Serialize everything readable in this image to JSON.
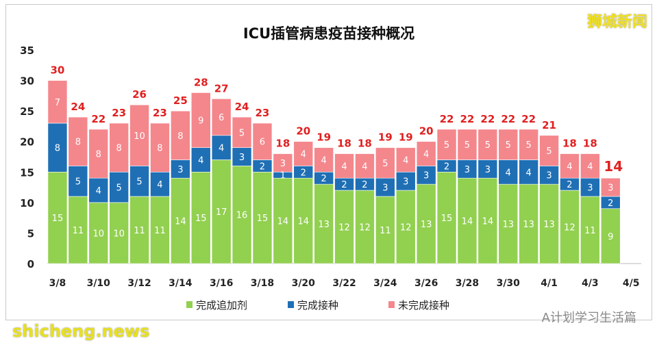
{
  "watermarks": {
    "top_right": "狮城新闻",
    "bottom_left": "shicheng.news",
    "bottom_right": "A计划学习生活篇"
  },
  "chart_data": {
    "type": "bar",
    "stacked": true,
    "title": "ICU插管病患疫苗接种概况",
    "xlabel": "",
    "ylabel": "",
    "ylim": [
      0,
      35
    ],
    "yticks": [
      0,
      5,
      10,
      15,
      20,
      25,
      30,
      35
    ],
    "grid": false,
    "legend": "bottom",
    "categories": [
      "3/8",
      "3/9",
      "3/10",
      "3/11",
      "3/12",
      "3/13",
      "3/14",
      "3/15",
      "3/16",
      "3/17",
      "3/18",
      "3/19",
      "3/20",
      "3/21",
      "3/22",
      "3/23",
      "3/24",
      "3/25",
      "3/26",
      "3/27",
      "3/28",
      "3/29",
      "3/30",
      "3/31",
      "4/1",
      "4/2",
      "4/3",
      "4/4"
    ],
    "xtick_labels": [
      "3/8",
      "3/10",
      "3/12",
      "3/14",
      "3/16",
      "3/18",
      "3/20",
      "3/22",
      "3/24",
      "3/26",
      "3/28",
      "3/30",
      "4/1",
      "4/3",
      "4/5"
    ],
    "series": [
      {
        "name": "完成追加剂",
        "color": "#92d050",
        "values": [
          15,
          11,
          10,
          10,
          11,
          11,
          14,
          15,
          17,
          16,
          15,
          14,
          14,
          13,
          12,
          12,
          11,
          12,
          13,
          15,
          14,
          14,
          13,
          13,
          13,
          12,
          11,
          9
        ]
      },
      {
        "name": "完成接种",
        "color": "#1f6fb5",
        "values": [
          8,
          5,
          4,
          5,
          5,
          4,
          3,
          4,
          4,
          3,
          2,
          1,
          2,
          2,
          2,
          2,
          3,
          3,
          3,
          2,
          3,
          3,
          4,
          4,
          3,
          2,
          3,
          2
        ]
      },
      {
        "name": "未完成接种",
        "color": "#f4878c",
        "values": [
          7,
          8,
          8,
          8,
          10,
          8,
          8,
          9,
          6,
          5,
          6,
          3,
          4,
          4,
          4,
          4,
          5,
          4,
          4,
          5,
          5,
          5,
          5,
          5,
          5,
          4,
          4,
          3
        ]
      }
    ],
    "totals": [
      30,
      24,
      22,
      23,
      26,
      23,
      25,
      28,
      27,
      24,
      23,
      18,
      20,
      19,
      18,
      18,
      19,
      19,
      20,
      22,
      22,
      22,
      22,
      22,
      21,
      18,
      18,
      14
    ],
    "total_label_color": "#e02020"
  }
}
